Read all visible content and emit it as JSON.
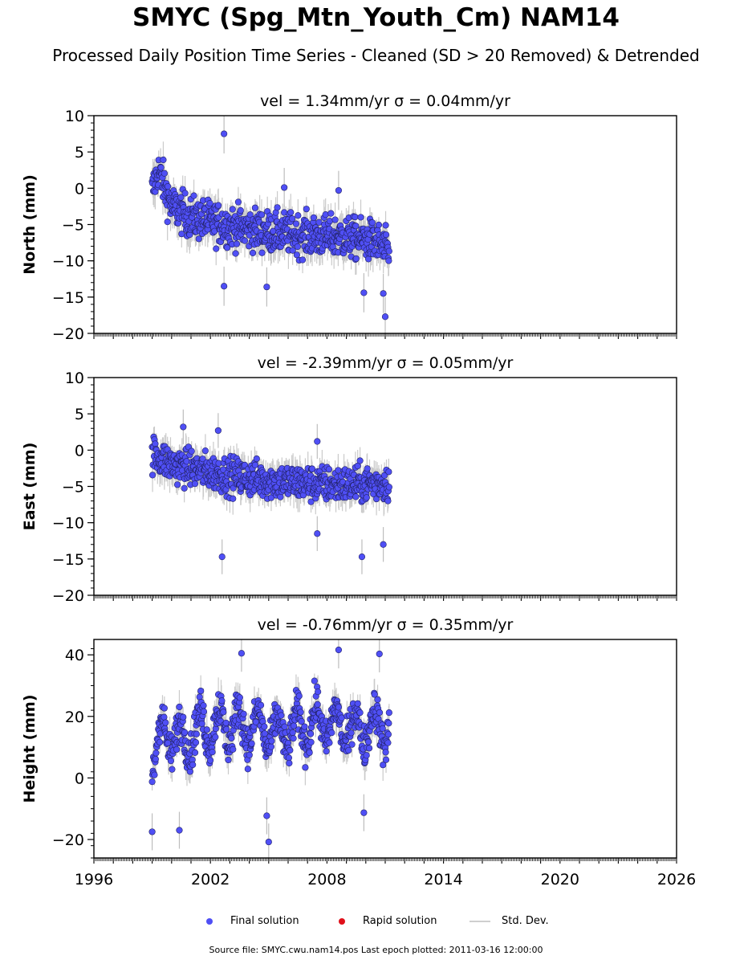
{
  "figure": {
    "title": "SMYC (Spg_Mtn_Youth_Cm) NAM14",
    "subtitle": "Processed Daily Position Time Series - Cleaned (SD > 20 Removed) & Detrended",
    "footer": "Source file: SMYC.cwu.nam14.pos  Last epoch plotted: 2011-03-16 12:00:00"
  },
  "legend": {
    "items": [
      {
        "label": "Final solution",
        "color": "#4f4ff5",
        "kind": "dot"
      },
      {
        "label": "Rapid solution",
        "color": "#e0101a",
        "kind": "dot"
      },
      {
        "label": "Std. Dev.",
        "color": "#cfcfcf",
        "kind": "line"
      }
    ]
  },
  "chart_data": [
    {
      "type": "scatter",
      "title": "vel = 1.34mm/yr   σ = 0.04mm/yr",
      "ylabel": "North (mm)",
      "xlim": [
        1996,
        2026
      ],
      "ylim": [
        -20,
        10
      ],
      "yticks": [
        10,
        5,
        0,
        -5,
        -10,
        -15,
        -20
      ],
      "ytick_labels": [
        "10",
        "5",
        "0",
        "−5",
        "−10",
        "−15",
        "−20"
      ],
      "xticks": [
        1996,
        2002,
        2008,
        2014,
        2020,
        2026
      ],
      "xtick_labels": [],
      "series": [
        {
          "name": "Final solution",
          "color": "#4f4ff5",
          "data_range": [
            1999.0,
            2011.2
          ],
          "trend": [
            [
              1999.0,
              -0.5
            ],
            [
              1999.3,
              2.5
            ],
            [
              1999.6,
              0.5
            ],
            [
              2000.0,
              -2.5
            ],
            [
              2001.0,
              -4.0
            ],
            [
              2003.0,
              -5.2
            ],
            [
              2005.0,
              -6.0
            ],
            [
              2007.0,
              -6.5
            ],
            [
              2009.0,
              -6.8
            ],
            [
              2010.5,
              -7.3
            ],
            [
              2011.2,
              -9.0
            ]
          ],
          "spread": 4.5,
          "outliers": [
            [
              2002.7,
              7.5
            ],
            [
              2002.7,
              -13.5
            ],
            [
              2004.9,
              -13.6
            ],
            [
              2009.9,
              -14.4
            ],
            [
              2010.9,
              -14.5
            ],
            [
              2011.0,
              -17.7
            ],
            [
              2005.8,
              0.1
            ],
            [
              2008.6,
              -0.3
            ]
          ]
        }
      ]
    },
    {
      "type": "scatter",
      "title": "vel = -2.39mm/yr   σ = 0.05mm/yr",
      "ylabel": "East (mm)",
      "xlim": [
        1996,
        2026
      ],
      "ylim": [
        -20,
        10
      ],
      "yticks": [
        10,
        5,
        0,
        -5,
        -10,
        -15,
        -20
      ],
      "ytick_labels": [
        "10",
        "5",
        "0",
        "−5",
        "−10",
        "−15",
        "−20"
      ],
      "xticks": [
        1996,
        2002,
        2008,
        2014,
        2020,
        2026
      ],
      "xtick_labels": [],
      "series": [
        {
          "name": "Final solution",
          "color": "#4f4ff5",
          "data_range": [
            1999.0,
            2011.2
          ],
          "trend": [
            [
              1999.0,
              -0.5
            ],
            [
              1999.5,
              -1.2
            ],
            [
              2000.0,
              -2.0
            ],
            [
              2001.0,
              -2.5
            ],
            [
              2003.0,
              -3.5
            ],
            [
              2005.0,
              -4.2
            ],
            [
              2007.0,
              -4.6
            ],
            [
              2009.0,
              -4.8
            ],
            [
              2011.2,
              -4.5
            ]
          ],
          "spread": 4.0,
          "outliers": [
            [
              2002.6,
              -14.7
            ],
            [
              2009.8,
              -14.7
            ],
            [
              2010.9,
              -13.0
            ],
            [
              2000.6,
              3.2
            ],
            [
              2002.4,
              2.7
            ],
            [
              2007.5,
              1.2
            ],
            [
              2007.5,
              -11.5
            ]
          ]
        }
      ]
    },
    {
      "type": "scatter",
      "title": "vel = -0.76mm/yr   σ = 0.35mm/yr",
      "ylabel": "Height (mm)",
      "xlim": [
        1996,
        2026
      ],
      "ylim": [
        -26,
        45
      ],
      "yticks": [
        40,
        20,
        0,
        -20
      ],
      "ytick_labels": [
        "40",
        "20",
        "0",
        "−20"
      ],
      "xticks": [
        1996,
        2002,
        2008,
        2014,
        2020,
        2026
      ],
      "xtick_labels": [
        "1996",
        "2002",
        "2008",
        "2014",
        "2020",
        "2026"
      ],
      "series": [
        {
          "name": "Final solution",
          "color": "#4f4ff5",
          "data_range": [
            1999.0,
            2011.2
          ],
          "trend": [
            [
              1999.0,
              5
            ],
            [
              1999.5,
              15
            ],
            [
              2000.5,
              12
            ],
            [
              2001.5,
              16
            ],
            [
              2002.5,
              17
            ],
            [
              2003.5,
              17
            ],
            [
              2004.5,
              16
            ],
            [
              2005.5,
              14
            ],
            [
              2006.5,
              16
            ],
            [
              2007.5,
              18
            ],
            [
              2008.5,
              17
            ],
            [
              2009.5,
              16
            ],
            [
              2010.5,
              17
            ],
            [
              2011.2,
              16
            ]
          ],
          "spread": 10.0,
          "seasonal_amplitude": 6.0,
          "outliers": [
            [
              1999.0,
              -17.5
            ],
            [
              2000.4,
              -17.0
            ],
            [
              2005.0,
              -20.8
            ],
            [
              2004.9,
              -12.3
            ],
            [
              2003.6,
              40.5
            ],
            [
              2008.6,
              41.6
            ],
            [
              2010.7,
              40.3
            ],
            [
              2009.9,
              -11.3
            ]
          ]
        }
      ]
    }
  ]
}
